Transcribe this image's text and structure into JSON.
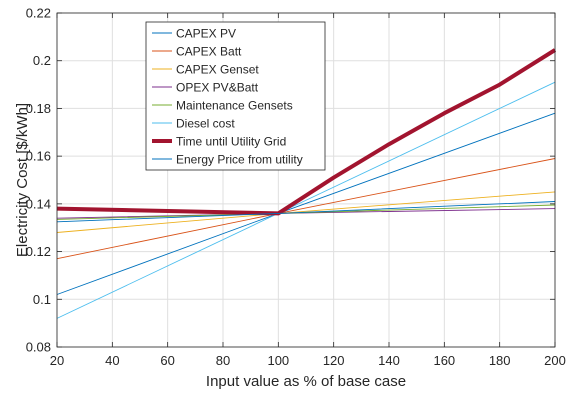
{
  "chart_data": {
    "type": "line",
    "title": "",
    "xlabel": "Input value as % of base case",
    "ylabel": "Electricity Cost [$/kWh]",
    "xlim": [
      20,
      200
    ],
    "ylim": [
      0.08,
      0.22
    ],
    "xticks": [
      20,
      40,
      60,
      80,
      100,
      120,
      140,
      160,
      180,
      200
    ],
    "xtick_labels": [
      "20",
      "40",
      "60",
      "80",
      "100",
      "120",
      "140",
      "160",
      "180",
      "200"
    ],
    "yticks": [
      0.08,
      0.1,
      0.12,
      0.14,
      0.16,
      0.18,
      0.2,
      0.22
    ],
    "ytick_labels": [
      "0.08",
      "0.1",
      "0.12",
      "0.14",
      "0.16",
      "0.18",
      "0.2",
      "0.22"
    ],
    "grid": true,
    "legend_position": "top-left",
    "series": [
      {
        "name": "CAPEX PV",
        "color": "#0072BD",
        "width": 0.9,
        "x": [
          20,
          100,
          200
        ],
        "y": [
          0.102,
          0.136,
          0.178
        ]
      },
      {
        "name": "CAPEX Batt",
        "color": "#D95319",
        "width": 0.9,
        "x": [
          20,
          100,
          200
        ],
        "y": [
          0.117,
          0.136,
          0.159
        ]
      },
      {
        "name": "CAPEX Genset",
        "color": "#EDB120",
        "width": 0.9,
        "x": [
          20,
          100,
          200
        ],
        "y": [
          0.128,
          0.136,
          0.145
        ]
      },
      {
        "name": "OPEX PV&Batt",
        "color": "#7E2F8E",
        "width": 0.9,
        "x": [
          20,
          100,
          200
        ],
        "y": [
          0.134,
          0.136,
          0.138
        ]
      },
      {
        "name": "Maintenance Gensets",
        "color": "#77AC30",
        "width": 0.9,
        "x": [
          20,
          100,
          200
        ],
        "y": [
          0.1335,
          0.136,
          0.1395
        ]
      },
      {
        "name": "Diesel cost",
        "color": "#4DBEEE",
        "width": 0.9,
        "x": [
          20,
          100,
          200
        ],
        "y": [
          0.092,
          0.136,
          0.191
        ]
      },
      {
        "name": "Time until Utility Grid",
        "color": "#A2142F",
        "width": 4,
        "x": [
          20,
          100,
          120,
          140,
          160,
          180,
          200
        ],
        "y": [
          0.138,
          0.136,
          0.151,
          0.165,
          0.178,
          0.19,
          0.2045
        ]
      },
      {
        "name": "Energy Price from utility",
        "color": "#0072BD",
        "width": 0.9,
        "x": [
          20,
          100,
          200
        ],
        "y": [
          0.1325,
          0.136,
          0.141
        ]
      }
    ]
  }
}
